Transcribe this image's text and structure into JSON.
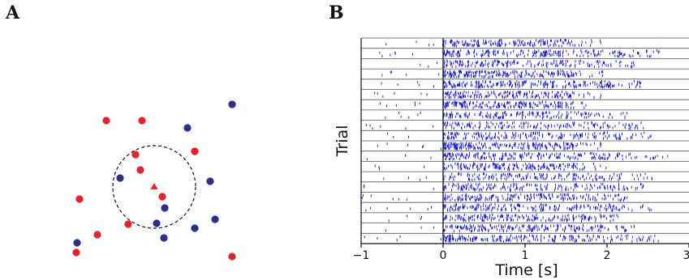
{
  "panel_a": {
    "label": "A",
    "colors": {
      "red": "#e8212b",
      "blue": "#2b2f8c"
    },
    "red_dots_count": 11,
    "blue_dots_count": 11,
    "center_marker": "triangle",
    "neighborhood": "dashed-circle"
  },
  "panel_b": {
    "label": "B",
    "chart_data": {
      "type": "scatter",
      "kind": "spike-raster",
      "xlabel": "Time [s]",
      "ylabel": "Trial",
      "xlim": [
        -1,
        3
      ],
      "xticks": [
        "−1",
        "0",
        "1",
        "2",
        "3"
      ],
      "trials": 20,
      "stimulus_onset": 0,
      "spike_color": "#1010e0",
      "grid": "horizontal trial separators",
      "trial_end_times": [
        1.6,
        2.3,
        2.0,
        1.6,
        2.1,
        1.6,
        1.5,
        1.9,
        2.1,
        2.2,
        1.6,
        2.4,
        1.7,
        2.2,
        2.1,
        1.9,
        2.2,
        1.8,
        2.0,
        2.3
      ]
    }
  }
}
